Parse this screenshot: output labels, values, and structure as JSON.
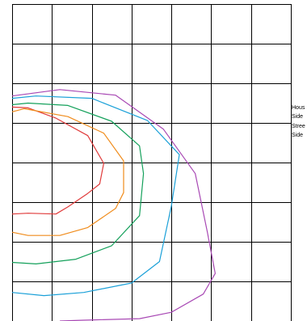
{
  "chart_data": {
    "type": "contour",
    "grid": true,
    "legend_placement": "right",
    "grid_x": [
      0,
      1,
      2,
      3,
      4,
      5,
      6,
      7
    ],
    "grid_y": [
      0,
      1,
      2,
      3,
      4,
      5,
      6,
      7,
      8
    ],
    "xlim": [
      0,
      7
    ],
    "ylim": [
      0,
      8
    ],
    "legend": [
      "Hous",
      "Side",
      "Stree",
      "Side"
    ],
    "series": [
      {
        "color": "#e03a3a",
        "points": [
          [
            0,
            5.4
          ],
          [
            0.4,
            5.38
          ],
          [
            1.1,
            5.12
          ],
          [
            1.9,
            4.68
          ],
          [
            2.3,
            3.98
          ],
          [
            2.2,
            3.46
          ],
          [
            1.9,
            3.22
          ],
          [
            1.4,
            2.88
          ],
          [
            1.1,
            2.7
          ],
          [
            0.4,
            2.72
          ],
          [
            0,
            2.7
          ]
        ]
      },
      {
        "color": "#f08c1c",
        "points": [
          [
            0,
            5.28
          ],
          [
            0.3,
            5.36
          ],
          [
            1.4,
            5.16
          ],
          [
            2.3,
            4.74
          ],
          [
            2.8,
            4.04
          ],
          [
            2.8,
            3.24
          ],
          [
            2.6,
            2.84
          ],
          [
            1.9,
            2.36
          ],
          [
            1.2,
            2.16
          ],
          [
            0.4,
            2.16
          ],
          [
            0,
            2.24
          ]
        ]
      },
      {
        "color": "#13a05a",
        "points": [
          [
            0,
            5.46
          ],
          [
            0.4,
            5.5
          ],
          [
            1.4,
            5.44
          ],
          [
            2.5,
            5.04
          ],
          [
            3.2,
            4.42
          ],
          [
            3.3,
            3.72
          ],
          [
            3.2,
            2.66
          ],
          [
            2.5,
            1.9
          ],
          [
            1.6,
            1.56
          ],
          [
            0.6,
            1.44
          ],
          [
            0,
            1.48
          ]
        ]
      },
      {
        "color": "#1aa0d8",
        "points": [
          [
            0,
            5.62
          ],
          [
            0.6,
            5.68
          ],
          [
            2.0,
            5.62
          ],
          [
            3.4,
            5.06
          ],
          [
            4.2,
            4.2
          ],
          [
            4.0,
            2.9
          ],
          [
            3.7,
            1.5
          ],
          [
            3.0,
            0.96
          ],
          [
            1.8,
            0.72
          ],
          [
            0.8,
            0.64
          ],
          [
            0,
            0.72
          ]
        ]
      },
      {
        "color": "#a848b4",
        "points": [
          [
            0,
            5.68
          ],
          [
            1.2,
            5.84
          ],
          [
            2.6,
            5.7
          ],
          [
            3.8,
            4.84
          ],
          [
            4.6,
            3.72
          ],
          [
            4.9,
            2.26
          ],
          [
            5.1,
            1.2
          ],
          [
            4.8,
            0.68
          ],
          [
            4.0,
            0.22
          ],
          [
            3.2,
            0.06
          ],
          [
            1.8,
            0.02
          ],
          [
            1.2,
            0
          ]
        ]
      }
    ]
  }
}
